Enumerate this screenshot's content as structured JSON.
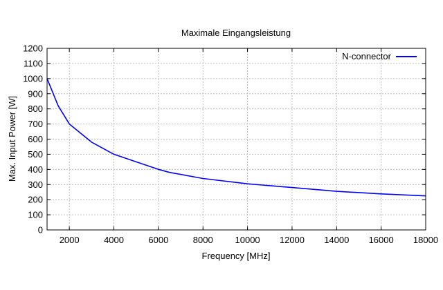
{
  "chart_data": {
    "type": "line",
    "title": "Maximale Eingangsleistung",
    "xlabel": "Frequency [MHz]",
    "ylabel": "Max. Input Power [W]",
    "xlim": [
      1000,
      18000
    ],
    "ylim": [
      0,
      1200
    ],
    "xticks": [
      2000,
      4000,
      6000,
      8000,
      10000,
      12000,
      14000,
      16000,
      18000
    ],
    "yticks": [
      0,
      100,
      200,
      300,
      400,
      500,
      600,
      700,
      800,
      900,
      1000,
      1100,
      1200
    ],
    "grid": true,
    "legend_position": "top-right",
    "series": [
      {
        "name": "N-connector",
        "color": "#0000ff",
        "x": [
          1000,
          1500,
          2000,
          3000,
          4000,
          5000,
          6000,
          6500,
          8000,
          10000,
          12000,
          14000,
          16000,
          18000
        ],
        "y": [
          1000,
          820,
          700,
          580,
          500,
          450,
          400,
          380,
          340,
          305,
          280,
          255,
          238,
          225
        ]
      }
    ]
  }
}
